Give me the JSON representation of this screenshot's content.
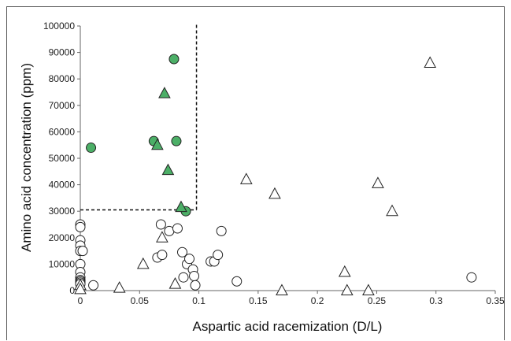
{
  "chart_data": {
    "type": "scatter",
    "title": "",
    "xlabel": "Aspartic acid racemization (D/L)",
    "ylabel": "Amino acid concentration (ppm)",
    "xlim": [
      0,
      0.35
    ],
    "ylim": [
      0,
      100000
    ],
    "x_ticks": [
      "0",
      "0.05",
      "0.1",
      "0.15",
      "0.2",
      "0.25",
      "0.3",
      "0.35"
    ],
    "y_ticks": [
      "0",
      "10000",
      "20000",
      "30000",
      "40000",
      "50000",
      "60000",
      "70000",
      "80000",
      "90000",
      "100000"
    ],
    "grid": false,
    "legend": "none",
    "threshold_box": {
      "x_max": 0.098,
      "y_min": 30500,
      "style": "dashed"
    },
    "colors": {
      "highlight_fill": "#4caf67",
      "open_fill": "#ffffff",
      "stroke": "#222222"
    },
    "series": [
      {
        "marker": "circle",
        "fill": "open",
        "points": [
          [
            0,
            25000
          ],
          [
            0,
            24000
          ],
          [
            0,
            19000
          ],
          [
            0,
            17000
          ],
          [
            0,
            15000
          ],
          [
            0,
            10000
          ],
          [
            0,
            7000
          ],
          [
            0,
            5000
          ],
          [
            0,
            4000
          ],
          [
            0,
            3500
          ],
          [
            0,
            3000
          ],
          [
            0,
            2500
          ],
          [
            0.002,
            15000
          ],
          [
            0.011,
            2000
          ],
          [
            0.065,
            12500
          ],
          [
            0.068,
            25000
          ],
          [
            0.069,
            13500
          ],
          [
            0.075,
            22500
          ],
          [
            0.082,
            23500
          ],
          [
            0.086,
            14500
          ],
          [
            0.087,
            5000
          ],
          [
            0.09,
            10000
          ],
          [
            0.092,
            12000
          ],
          [
            0.095,
            8000
          ],
          [
            0.096,
            5500
          ],
          [
            0.097,
            2000
          ],
          [
            0.11,
            11000
          ],
          [
            0.113,
            11000
          ],
          [
            0.116,
            13500
          ],
          [
            0.119,
            22500
          ],
          [
            0.132,
            3500
          ],
          [
            0.33,
            5000
          ]
        ]
      },
      {
        "marker": "triangle",
        "fill": "open",
        "points": [
          [
            0,
            2000
          ],
          [
            0,
            500
          ],
          [
            0.033,
            1000
          ],
          [
            0.053,
            10000
          ],
          [
            0.069,
            20000
          ],
          [
            0.08,
            2500
          ],
          [
            0.14,
            42000
          ],
          [
            0.164,
            36500
          ],
          [
            0.17,
            0
          ],
          [
            0.223,
            7000
          ],
          [
            0.225,
            0
          ],
          [
            0.243,
            0
          ],
          [
            0.251,
            40500
          ],
          [
            0.263,
            30000
          ],
          [
            0.295,
            86000
          ]
        ]
      },
      {
        "marker": "circle",
        "fill": "filled",
        "points": [
          [
            0.009,
            54000
          ],
          [
            0.062,
            56500
          ],
          [
            0.079,
            87500
          ],
          [
            0.081,
            56500
          ],
          [
            0.089,
            30000
          ]
        ]
      },
      {
        "marker": "triangle",
        "fill": "filled",
        "points": [
          [
            0.065,
            55000
          ],
          [
            0.071,
            74500
          ],
          [
            0.074,
            45500
          ],
          [
            0.085,
            31500
          ]
        ]
      }
    ]
  }
}
